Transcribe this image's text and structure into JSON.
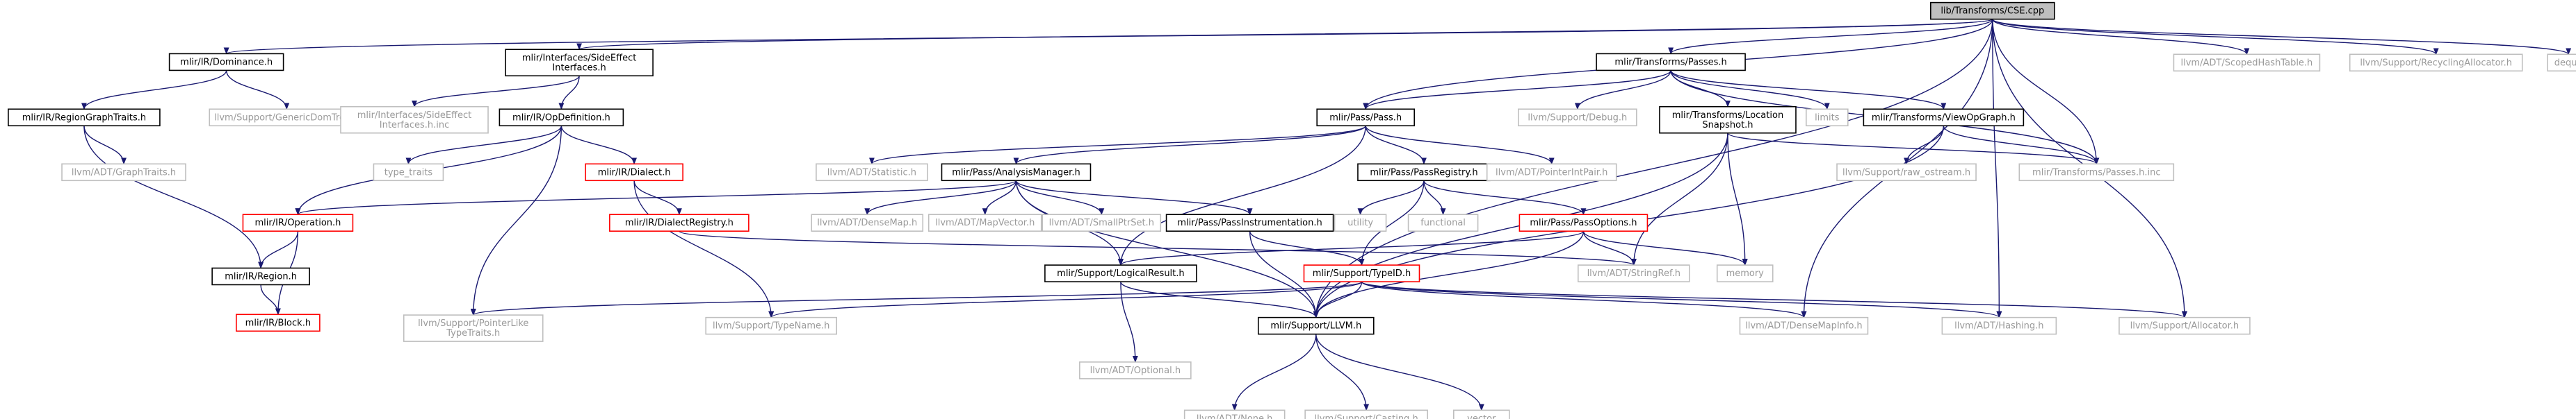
{
  "colors": {
    "edge": "#191970",
    "root_fill": "#bfbfbf",
    "normal_border": "#000000",
    "missing_border": "#bfbfbf",
    "truncated_border": "#ff0000",
    "normal_text": "#000000",
    "missing_text": "#9a9a9a"
  },
  "nodes": [
    {
      "id": "cse",
      "lines": [
        "lib/Transforms/CSE.cpp"
      ],
      "kind": "root"
    },
    {
      "id": "dom",
      "lines": [
        "mlir/IR/Dominance.h"
      ],
      "kind": "normal"
    },
    {
      "id": "seif",
      "lines": [
        "mlir/Interfaces/SideEffect",
        "Interfaces.h"
      ],
      "kind": "normal"
    },
    {
      "id": "tpasses",
      "lines": [
        "mlir/Transforms/Passes.h"
      ],
      "kind": "normal"
    },
    {
      "id": "scoped",
      "lines": [
        "llvm/ADT/ScopedHashTable.h"
      ],
      "kind": "missing"
    },
    {
      "id": "recycle",
      "lines": [
        "llvm/Support/RecyclingAllocator.h"
      ],
      "kind": "missing"
    },
    {
      "id": "deque",
      "lines": [
        "deque"
      ],
      "kind": "missing"
    },
    {
      "id": "rgt",
      "lines": [
        "mlir/IR/RegionGraphTraits.h"
      ],
      "kind": "normal"
    },
    {
      "id": "gdt",
      "lines": [
        "llvm/Support/GenericDomTree.h"
      ],
      "kind": "missing"
    },
    {
      "id": "seifinc",
      "lines": [
        "mlir/Interfaces/SideEffect",
        "Interfaces.h.inc"
      ],
      "kind": "missing"
    },
    {
      "id": "opdef",
      "lines": [
        "mlir/IR/OpDefinition.h"
      ],
      "kind": "normal"
    },
    {
      "id": "pass",
      "lines": [
        "mlir/Pass/Pass.h"
      ],
      "kind": "normal"
    },
    {
      "id": "debug",
      "lines": [
        "llvm/Support/Debug.h"
      ],
      "kind": "missing"
    },
    {
      "id": "locsnap",
      "lines": [
        "mlir/Transforms/Location",
        "Snapshot.h"
      ],
      "kind": "normal"
    },
    {
      "id": "limits",
      "lines": [
        "limits"
      ],
      "kind": "missing"
    },
    {
      "id": "viewop",
      "lines": [
        "mlir/Transforms/ViewOpGraph.h"
      ],
      "kind": "normal"
    },
    {
      "id": "graphtraits",
      "lines": [
        "llvm/ADT/GraphTraits.h"
      ],
      "kind": "missing"
    },
    {
      "id": "typetraits",
      "lines": [
        "type_traits"
      ],
      "kind": "missing"
    },
    {
      "id": "dialect",
      "lines": [
        "mlir/IR/Dialect.h"
      ],
      "kind": "truncated"
    },
    {
      "id": "statistic",
      "lines": [
        "llvm/ADT/Statistic.h"
      ],
      "kind": "missing"
    },
    {
      "id": "am",
      "lines": [
        "mlir/Pass/AnalysisManager.h"
      ],
      "kind": "normal"
    },
    {
      "id": "preg",
      "lines": [
        "mlir/Pass/PassRegistry.h"
      ],
      "kind": "normal"
    },
    {
      "id": "ptrint",
      "lines": [
        "llvm/ADT/PointerIntPair.h"
      ],
      "kind": "missing"
    },
    {
      "id": "rawos",
      "lines": [
        "llvm/Support/raw_ostream.h"
      ],
      "kind": "missing"
    },
    {
      "id": "passesinc",
      "lines": [
        "mlir/Transforms/Passes.h.inc"
      ],
      "kind": "missing"
    },
    {
      "id": "operation",
      "lines": [
        "mlir/IR/Operation.h"
      ],
      "kind": "truncated"
    },
    {
      "id": "dialreg",
      "lines": [
        "mlir/IR/DialectRegistry.h"
      ],
      "kind": "truncated"
    },
    {
      "id": "densemap",
      "lines": [
        "llvm/ADT/DenseMap.h"
      ],
      "kind": "missing"
    },
    {
      "id": "mapvec",
      "lines": [
        "llvm/ADT/MapVector.h"
      ],
      "kind": "missing"
    },
    {
      "id": "smallptr",
      "lines": [
        "llvm/ADT/SmallPtrSet.h"
      ],
      "kind": "missing"
    },
    {
      "id": "pinst",
      "lines": [
        "mlir/Pass/PassInstrumentation.h"
      ],
      "kind": "normal"
    },
    {
      "id": "utility",
      "lines": [
        "utility"
      ],
      "kind": "missing"
    },
    {
      "id": "functional",
      "lines": [
        "functional"
      ],
      "kind": "missing"
    },
    {
      "id": "popts",
      "lines": [
        "mlir/Pass/PassOptions.h"
      ],
      "kind": "truncated"
    },
    {
      "id": "region",
      "lines": [
        "mlir/IR/Region.h"
      ],
      "kind": "normal"
    },
    {
      "id": "logical",
      "lines": [
        "mlir/Support/LogicalResult.h"
      ],
      "kind": "normal"
    },
    {
      "id": "typeid",
      "lines": [
        "mlir/Support/TypeID.h"
      ],
      "kind": "truncated"
    },
    {
      "id": "stringref",
      "lines": [
        "llvm/ADT/StringRef.h"
      ],
      "kind": "missing"
    },
    {
      "id": "memory",
      "lines": [
        "memory"
      ],
      "kind": "missing"
    },
    {
      "id": "block",
      "lines": [
        "mlir/IR/Block.h"
      ],
      "kind": "truncated"
    },
    {
      "id": "ptrlike",
      "lines": [
        "llvm/Support/PointerLike",
        "TypeTraits.h"
      ],
      "kind": "missing"
    },
    {
      "id": "typename",
      "lines": [
        "llvm/Support/TypeName.h"
      ],
      "kind": "missing"
    },
    {
      "id": "llvmh",
      "lines": [
        "mlir/Support/LLVM.h"
      ],
      "kind": "normal"
    },
    {
      "id": "optional",
      "lines": [
        "llvm/ADT/Optional.h"
      ],
      "kind": "missing"
    },
    {
      "id": "dmi",
      "lines": [
        "llvm/ADT/DenseMapInfo.h"
      ],
      "kind": "missing"
    },
    {
      "id": "hashing",
      "lines": [
        "llvm/ADT/Hashing.h"
      ],
      "kind": "missing"
    },
    {
      "id": "allocator",
      "lines": [
        "llvm/Support/Allocator.h"
      ],
      "kind": "missing"
    },
    {
      "id": "none",
      "lines": [
        "llvm/ADT/None.h"
      ],
      "kind": "missing"
    },
    {
      "id": "casting",
      "lines": [
        "llvm/Support/Casting.h"
      ],
      "kind": "missing"
    },
    {
      "id": "vector",
      "lines": [
        "vector"
      ],
      "kind": "missing"
    }
  ],
  "edges": [
    [
      "cse",
      "dom"
    ],
    [
      "cse",
      "seif"
    ],
    [
      "cse",
      "tpasses"
    ],
    [
      "cse",
      "pass"
    ],
    [
      "cse",
      "passesinc"
    ],
    [
      "cse",
      "scoped"
    ],
    [
      "cse",
      "recycle"
    ],
    [
      "cse",
      "deque"
    ],
    [
      "cse",
      "dmi"
    ],
    [
      "cse",
      "hashing"
    ],
    [
      "cse",
      "allocator"
    ],
    [
      "cse",
      "llvmh"
    ],
    [
      "dom",
      "rgt"
    ],
    [
      "dom",
      "gdt"
    ],
    [
      "rgt",
      "graphtraits"
    ],
    [
      "rgt",
      "region"
    ],
    [
      "seif",
      "seifinc"
    ],
    [
      "seif",
      "opdef"
    ],
    [
      "opdef",
      "typetraits"
    ],
    [
      "opdef",
      "dialect"
    ],
    [
      "opdef",
      "operation"
    ],
    [
      "opdef",
      "ptrlike"
    ],
    [
      "tpasses",
      "pass"
    ],
    [
      "tpasses",
      "debug"
    ],
    [
      "tpasses",
      "locsnap"
    ],
    [
      "tpasses",
      "limits"
    ],
    [
      "tpasses",
      "viewop"
    ],
    [
      "tpasses",
      "passesinc"
    ],
    [
      "pass",
      "statistic"
    ],
    [
      "pass",
      "am"
    ],
    [
      "pass",
      "preg"
    ],
    [
      "pass",
      "ptrint"
    ],
    [
      "pass",
      "logical"
    ],
    [
      "locsnap",
      "passesinc"
    ],
    [
      "locsnap",
      "stringref"
    ],
    [
      "locsnap",
      "memory"
    ],
    [
      "locsnap",
      "llvmh"
    ],
    [
      "viewop",
      "rawos"
    ],
    [
      "viewop",
      "passesinc"
    ],
    [
      "viewop",
      "llvmh"
    ],
    [
      "dialect",
      "dialreg"
    ],
    [
      "dialect",
      "typename"
    ],
    [
      "am",
      "operation"
    ],
    [
      "am",
      "densemap"
    ],
    [
      "am",
      "mapvec"
    ],
    [
      "am",
      "smallptr"
    ],
    [
      "am",
      "pinst"
    ],
    [
      "am",
      "logical"
    ],
    [
      "am",
      "llvmh"
    ],
    [
      "preg",
      "utility"
    ],
    [
      "preg",
      "functional"
    ],
    [
      "preg",
      "popts"
    ],
    [
      "preg",
      "typeid"
    ],
    [
      "operation",
      "region"
    ],
    [
      "operation",
      "block"
    ],
    [
      "dialreg",
      "stringref"
    ],
    [
      "pinst",
      "typeid"
    ],
    [
      "pinst",
      "llvmh"
    ],
    [
      "popts",
      "logical"
    ],
    [
      "popts",
      "stringref"
    ],
    [
      "popts",
      "memory"
    ],
    [
      "popts",
      "llvmh"
    ],
    [
      "region",
      "block"
    ],
    [
      "logical",
      "optional"
    ],
    [
      "logical",
      "llvmh"
    ],
    [
      "typeid",
      "ptrlike"
    ],
    [
      "typeid",
      "typename"
    ],
    [
      "typeid",
      "llvmh"
    ],
    [
      "typeid",
      "dmi"
    ],
    [
      "typeid",
      "hashing"
    ],
    [
      "typeid",
      "allocator"
    ],
    [
      "llvmh",
      "none"
    ],
    [
      "llvmh",
      "casting"
    ],
    [
      "llvmh",
      "vector"
    ]
  ]
}
